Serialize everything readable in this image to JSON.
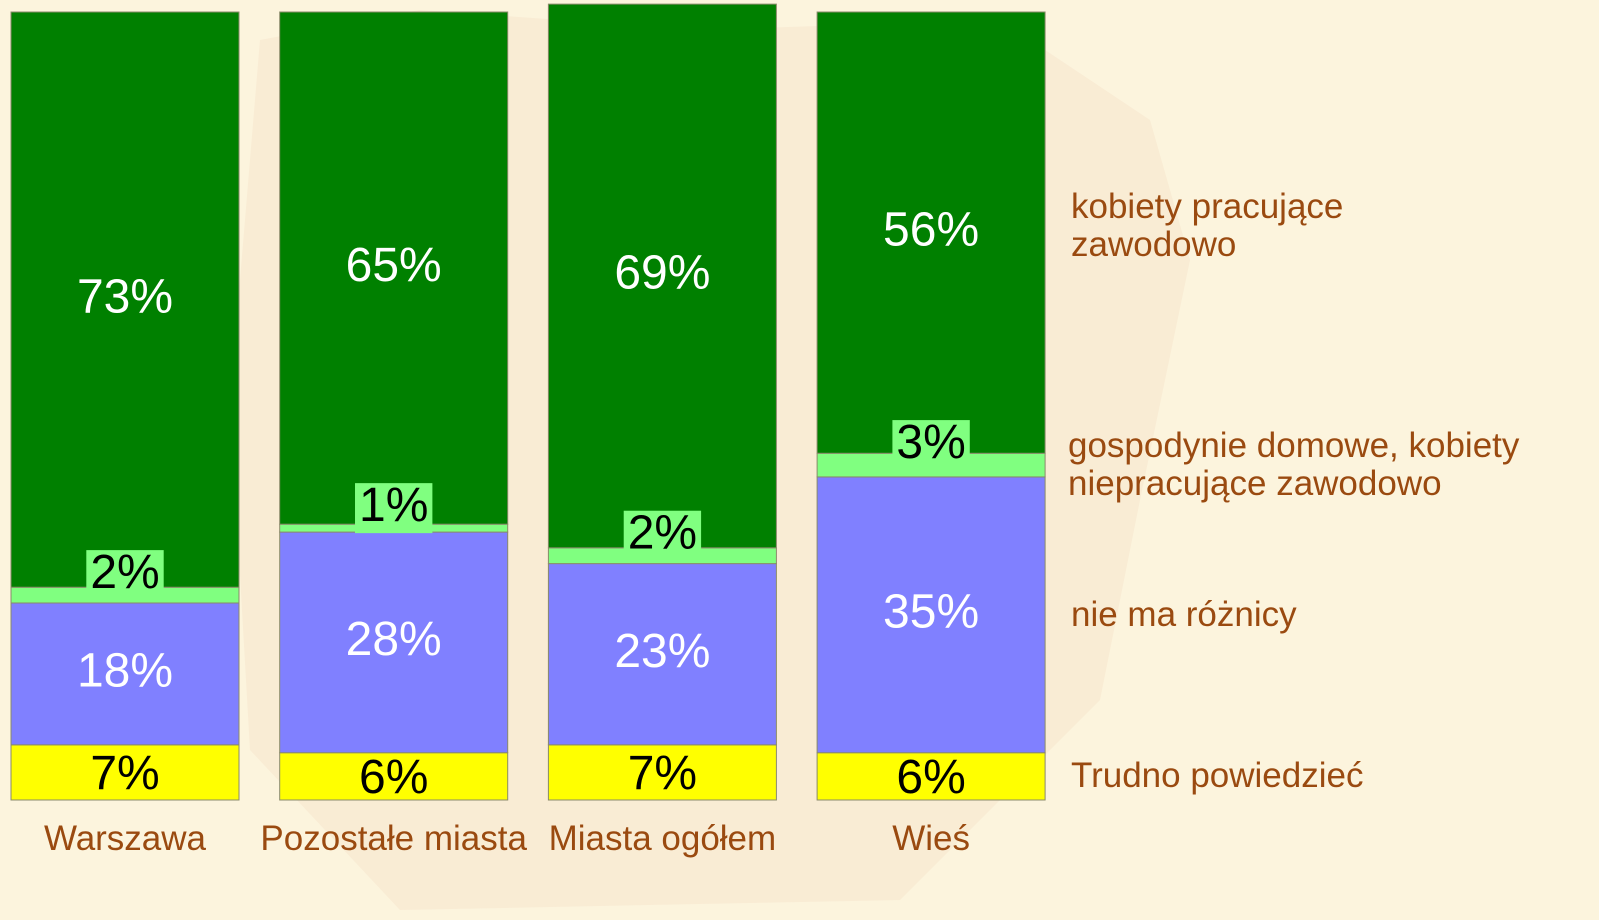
{
  "chart_data": {
    "type": "stacked_bar",
    "categories": [
      "Warszawa",
      "Pozostałe miasta",
      "Miasta ogółem",
      "Wieś"
    ],
    "ylim": [
      0,
      100
    ],
    "series": [
      {
        "name": "Trudno powiedzieć",
        "color": "#ffff00",
        "label_color": "#000000",
        "values": [
          7,
          6,
          7,
          6
        ],
        "value_labels": [
          "7%",
          "6%",
          "7%",
          "6%"
        ]
      },
      {
        "name": "nie ma różnicy",
        "color": "#8080ff",
        "label_color": "#ffffff",
        "values": [
          18,
          28,
          23,
          35
        ],
        "value_labels": [
          "18%",
          "28%",
          "23%",
          "35%"
        ]
      },
      {
        "name": "gospodynie domowe, kobiety niepracujące zawodowo",
        "color": "#80ff80",
        "label_color": "#000000",
        "values": [
          2,
          1,
          2,
          3
        ],
        "value_labels": [
          "2%",
          "1%",
          "2%",
          "3%"
        ]
      },
      {
        "name": "kobiety pracujące zawodowo",
        "color": "#008000",
        "label_color": "#ffffff",
        "values": [
          73,
          65,
          69,
          56
        ],
        "value_labels": [
          "73%",
          "65%",
          "69%",
          "56%"
        ]
      }
    ]
  }
}
